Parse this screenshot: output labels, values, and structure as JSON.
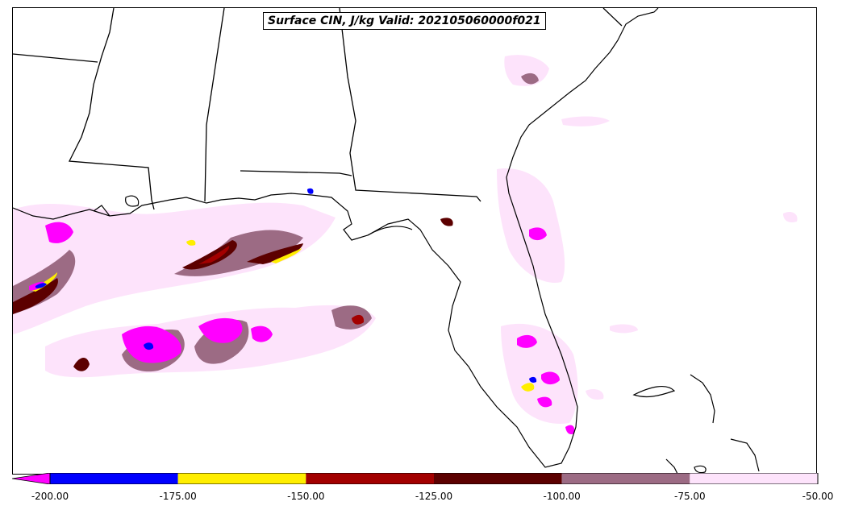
{
  "title": "Surface CIN, J/kg Valid: 202105060000f021",
  "colorbar": {
    "ticks": [
      "-200.00",
      "-175.00",
      "-150.00",
      "-125.00",
      "-100.00",
      "-75.00",
      "-50.00"
    ],
    "min": -200,
    "max": -50,
    "extend": "min",
    "bins": [
      {
        "from": -200,
        "to": -175,
        "color": "#0000ff"
      },
      {
        "from": -175,
        "to": -150,
        "color": "#ffee00"
      },
      {
        "from": -150,
        "to": -125,
        "color": "#a30000"
      },
      {
        "from": -125,
        "to": -100,
        "color": "#5c0000"
      },
      {
        "from": -100,
        "to": -75,
        "color": "#9c6b84"
      },
      {
        "from": -75,
        "to": -50,
        "color": "#fde3fb"
      }
    ],
    "under_color": "#ff00ff"
  },
  "colors": {
    "coastline": "#000000",
    "state_borders": "#000000",
    "background": "#ffffff"
  }
}
